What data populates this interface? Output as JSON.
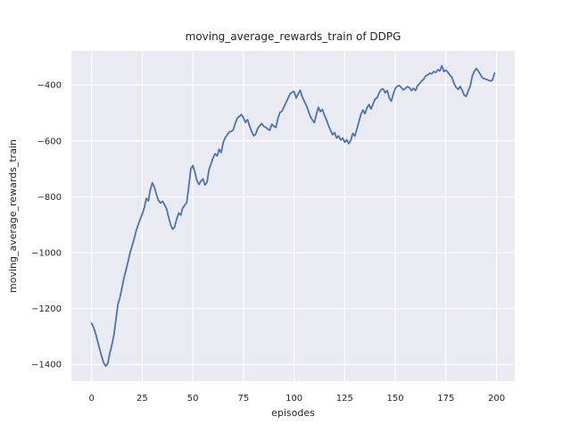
{
  "figure": {
    "background": "#ffffff"
  },
  "chart_data": {
    "type": "line",
    "title": "moving_average_rewards_train of DDPG",
    "xlabel": "episodes",
    "ylabel": "moving_average_rewards_train",
    "grid": true,
    "legend_position": "none",
    "x_start": 0,
    "x_step": 1,
    "values": [
      -1253,
      -1268,
      -1290,
      -1318,
      -1346,
      -1372,
      -1395,
      -1406,
      -1396,
      -1360,
      -1330,
      -1295,
      -1240,
      -1185,
      -1160,
      -1125,
      -1090,
      -1062,
      -1032,
      -1000,
      -976,
      -950,
      -922,
      -900,
      -880,
      -862,
      -840,
      -806,
      -815,
      -775,
      -750,
      -766,
      -792,
      -812,
      -822,
      -816,
      -828,
      -842,
      -872,
      -900,
      -916,
      -908,
      -880,
      -858,
      -866,
      -840,
      -830,
      -820,
      -762,
      -700,
      -688,
      -712,
      -742,
      -756,
      -744,
      -736,
      -758,
      -748,
      -702,
      -682,
      -660,
      -646,
      -654,
      -630,
      -642,
      -606,
      -588,
      -578,
      -568,
      -566,
      -560,
      -536,
      -518,
      -512,
      -506,
      -518,
      -534,
      -524,
      -546,
      -566,
      -582,
      -576,
      -556,
      -546,
      -538,
      -548,
      -552,
      -558,
      -562,
      -540,
      -548,
      -552,
      -520,
      -498,
      -494,
      -478,
      -463,
      -448,
      -432,
      -426,
      -423,
      -447,
      -432,
      -419,
      -442,
      -458,
      -472,
      -492,
      -512,
      -525,
      -535,
      -505,
      -480,
      -495,
      -488,
      -508,
      -525,
      -545,
      -562,
      -578,
      -570,
      -590,
      -582,
      -597,
      -590,
      -605,
      -596,
      -610,
      -598,
      -573,
      -583,
      -558,
      -532,
      -505,
      -490,
      -503,
      -482,
      -470,
      -486,
      -468,
      -450,
      -446,
      -428,
      -416,
      -414,
      -428,
      -420,
      -446,
      -458,
      -432,
      -412,
      -404,
      -402,
      -410,
      -418,
      -412,
      -406,
      -410,
      -420,
      -412,
      -420,
      -402,
      -395,
      -386,
      -379,
      -368,
      -364,
      -358,
      -360,
      -352,
      -355,
      -345,
      -350,
      -331,
      -352,
      -347,
      -355,
      -365,
      -373,
      -395,
      -408,
      -416,
      -405,
      -419,
      -436,
      -441,
      -421,
      -404,
      -368,
      -352,
      -341,
      -350,
      -362,
      -374,
      -378,
      -380,
      -383,
      -386,
      -382,
      -358
    ],
    "x_ticks": [
      0,
      25,
      50,
      75,
      100,
      125,
      150,
      175,
      200
    ],
    "x_tick_labels": [
      "0",
      "25",
      "50",
      "75",
      "100",
      "125",
      "150",
      "175",
      "200"
    ],
    "y_ticks": [
      -400,
      -600,
      -800,
      -1000,
      -1200,
      -1400
    ],
    "y_tick_labels": [
      "−400",
      "−600",
      "−800",
      "−1000",
      "−1200",
      "−1400"
    ],
    "xlim": [
      -10,
      209
    ],
    "ylim": [
      -1460,
      -278
    ],
    "style": {
      "line_color": "#4c72b0",
      "plot_background": "#eaeaf2",
      "grid_color": "#ffffff",
      "text_color": "#262626"
    }
  }
}
